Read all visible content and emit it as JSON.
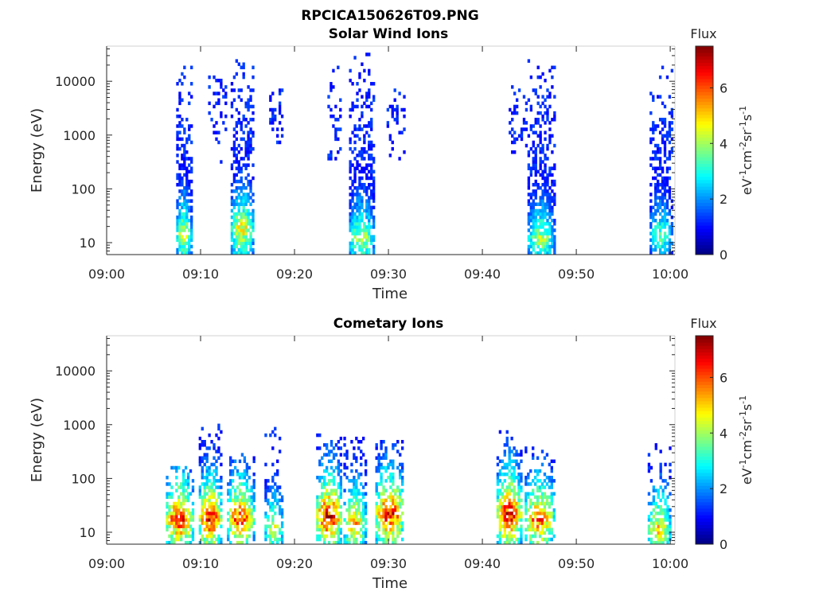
{
  "figure": {
    "title_line1": "RPCICA150626T09.PNG"
  },
  "chart_data": [
    {
      "type": "heatmap",
      "title": "Solar Wind Ions",
      "xlabel": "Time",
      "ylabel": "Energy (eV)",
      "x_ticks": [
        "09:00",
        "09:10",
        "09:20",
        "09:30",
        "09:40",
        "09:50",
        "10:00"
      ],
      "y_ticks": [
        "10",
        "100",
        "1000",
        "10000"
      ],
      "x_range_minutes": [
        0,
        60.5
      ],
      "y_range_eV": [
        6,
        45000
      ],
      "y_scale": "log",
      "colorbar": {
        "label": "Flux",
        "unit": "eV⁻¹cm⁻²sr⁻¹s⁻¹",
        "ticks": [
          "0",
          "2",
          "4",
          "6"
        ],
        "range": [
          0,
          7.5
        ],
        "colormap": "jet"
      },
      "colorbar_unit_parts": [
        "eV",
        "-1",
        "cm",
        "-2",
        "sr",
        "-1",
        "s",
        "-1"
      ],
      "bursts": [
        {
          "t_start": 7.4,
          "t_end": 9.0,
          "e_min": 6,
          "e_max": 22000,
          "peak_flux": 4.8,
          "peak_e": 14,
          "density": 0.85
        },
        {
          "t_start": 10.8,
          "t_end": 12.6,
          "e_min": 200,
          "e_max": 22000,
          "peak_flux": 1.4,
          "peak_e": 3000,
          "density": 0.35
        },
        {
          "t_start": 13.2,
          "t_end": 15.6,
          "e_min": 6,
          "e_max": 25000,
          "peak_flux": 5.2,
          "peak_e": 18,
          "density": 0.85
        },
        {
          "t_start": 17.3,
          "t_end": 18.6,
          "e_min": 500,
          "e_max": 9000,
          "peak_flux": 1.6,
          "peak_e": 2500,
          "density": 0.4
        },
        {
          "t_start": 23.5,
          "t_end": 25.0,
          "e_min": 350,
          "e_max": 22000,
          "peak_flux": 1.4,
          "peak_e": 2000,
          "density": 0.3
        },
        {
          "t_start": 25.8,
          "t_end": 28.4,
          "e_min": 6,
          "e_max": 32000,
          "peak_flux": 4.6,
          "peak_e": 12,
          "density": 0.85
        },
        {
          "t_start": 29.8,
          "t_end": 31.6,
          "e_min": 350,
          "e_max": 9000,
          "peak_flux": 1.4,
          "peak_e": 2000,
          "density": 0.3
        },
        {
          "t_start": 42.8,
          "t_end": 44.6,
          "e_min": 450,
          "e_max": 9000,
          "peak_flux": 1.8,
          "peak_e": 1500,
          "density": 0.4
        },
        {
          "t_start": 44.8,
          "t_end": 47.6,
          "e_min": 6,
          "e_max": 30000,
          "peak_flux": 4.4,
          "peak_e": 12,
          "density": 0.85
        },
        {
          "t_start": 57.8,
          "t_end": 60.2,
          "e_min": 6,
          "e_max": 20000,
          "peak_flux": 3.8,
          "peak_e": 14,
          "density": 0.8
        }
      ]
    },
    {
      "type": "heatmap",
      "title": "Cometary Ions",
      "xlabel": "Time",
      "ylabel": "Energy (eV)",
      "x_ticks": [
        "09:00",
        "09:10",
        "09:20",
        "09:30",
        "09:40",
        "09:50",
        "10:00"
      ],
      "y_ticks": [
        "10",
        "100",
        "1000",
        "10000"
      ],
      "x_range_minutes": [
        0,
        60.5
      ],
      "y_range_eV": [
        6,
        45000
      ],
      "y_scale": "log",
      "colorbar": {
        "label": "Flux",
        "unit": "eV⁻¹cm⁻²sr⁻¹s⁻¹",
        "ticks": [
          "0",
          "2",
          "4",
          "6"
        ],
        "range": [
          0,
          7.5
        ],
        "colormap": "jet"
      },
      "colorbar_unit_parts": [
        "eV",
        "-1",
        "cm",
        "-2",
        "sr",
        "-1",
        "s",
        "-1"
      ],
      "bursts": [
        {
          "t_start": 6.3,
          "t_end": 9.2,
          "e_min": 6,
          "e_max": 180,
          "peak_flux": 7.0,
          "peak_e": 18,
          "density": 0.9
        },
        {
          "t_start": 9.8,
          "t_end": 12.2,
          "e_min": 6,
          "e_max": 1000,
          "peak_flux": 7.2,
          "peak_e": 18,
          "density": 0.85
        },
        {
          "t_start": 12.8,
          "t_end": 15.6,
          "e_min": 6,
          "e_max": 300,
          "peak_flux": 6.8,
          "peak_e": 18,
          "density": 0.85
        },
        {
          "t_start": 16.8,
          "t_end": 18.8,
          "e_min": 6,
          "e_max": 1000,
          "peak_flux": 4.8,
          "peak_e": 12,
          "density": 0.55
        },
        {
          "t_start": 22.3,
          "t_end": 25.0,
          "e_min": 6,
          "e_max": 700,
          "peak_flux": 7.4,
          "peak_e": 20,
          "density": 0.9
        },
        {
          "t_start": 25.2,
          "t_end": 27.6,
          "e_min": 6,
          "e_max": 700,
          "peak_flux": 5.8,
          "peak_e": 15,
          "density": 0.75
        },
        {
          "t_start": 28.6,
          "t_end": 31.6,
          "e_min": 6,
          "e_max": 500,
          "peak_flux": 7.2,
          "peak_e": 22,
          "density": 0.85
        },
        {
          "t_start": 41.5,
          "t_end": 44.2,
          "e_min": 6,
          "e_max": 800,
          "peak_flux": 7.4,
          "peak_e": 22,
          "density": 0.85
        },
        {
          "t_start": 44.5,
          "t_end": 47.6,
          "e_min": 6,
          "e_max": 400,
          "peak_flux": 6.5,
          "peak_e": 18,
          "density": 0.8
        },
        {
          "t_start": 57.6,
          "t_end": 60.0,
          "e_min": 6,
          "e_max": 450,
          "peak_flux": 5.5,
          "peak_e": 12,
          "density": 0.75
        }
      ]
    }
  ]
}
